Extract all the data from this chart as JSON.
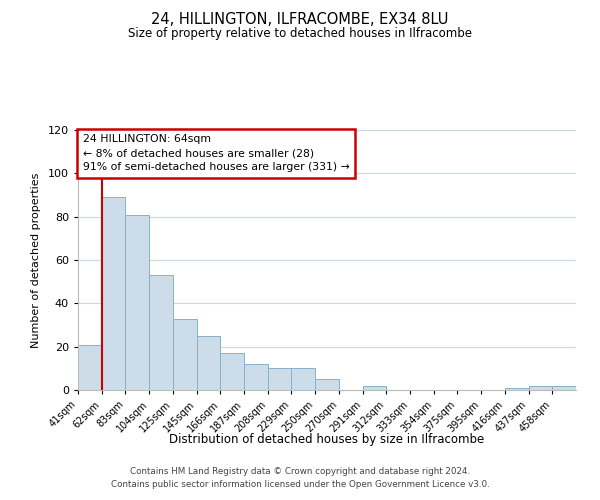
{
  "title": "24, HILLINGTON, ILFRACOMBE, EX34 8LU",
  "subtitle": "Size of property relative to detached houses in Ilfracombe",
  "xlabel": "Distribution of detached houses by size in Ilfracombe",
  "ylabel": "Number of detached properties",
  "bar_labels": [
    "41sqm",
    "62sqm",
    "83sqm",
    "104sqm",
    "125sqm",
    "145sqm",
    "166sqm",
    "187sqm",
    "208sqm",
    "229sqm",
    "250sqm",
    "270sqm",
    "291sqm",
    "312sqm",
    "333sqm",
    "354sqm",
    "375sqm",
    "395sqm",
    "416sqm",
    "437sqm",
    "458sqm"
  ],
  "bar_heights": [
    21,
    89,
    81,
    53,
    33,
    25,
    17,
    12,
    10,
    10,
    5,
    0,
    2,
    0,
    0,
    0,
    0,
    0,
    1,
    2,
    2
  ],
  "bar_color": "#ccdce8",
  "bar_edge_color": "#8ab0cc",
  "vline_x": 1,
  "vline_color": "#cc0000",
  "ylim": [
    0,
    120
  ],
  "yticks": [
    0,
    20,
    40,
    60,
    80,
    100,
    120
  ],
  "annotation_title": "24 HILLINGTON: 64sqm",
  "annotation_line1": "← 8% of detached houses are smaller (28)",
  "annotation_line2": "91% of semi-detached houses are larger (331) →",
  "annotation_box_color": "#ffffff",
  "annotation_box_edge": "#cc0000",
  "footer1": "Contains HM Land Registry data © Crown copyright and database right 2024.",
  "footer2": "Contains public sector information licensed under the Open Government Licence v3.0.",
  "background_color": "#ffffff",
  "grid_color": "#c8d8e8"
}
